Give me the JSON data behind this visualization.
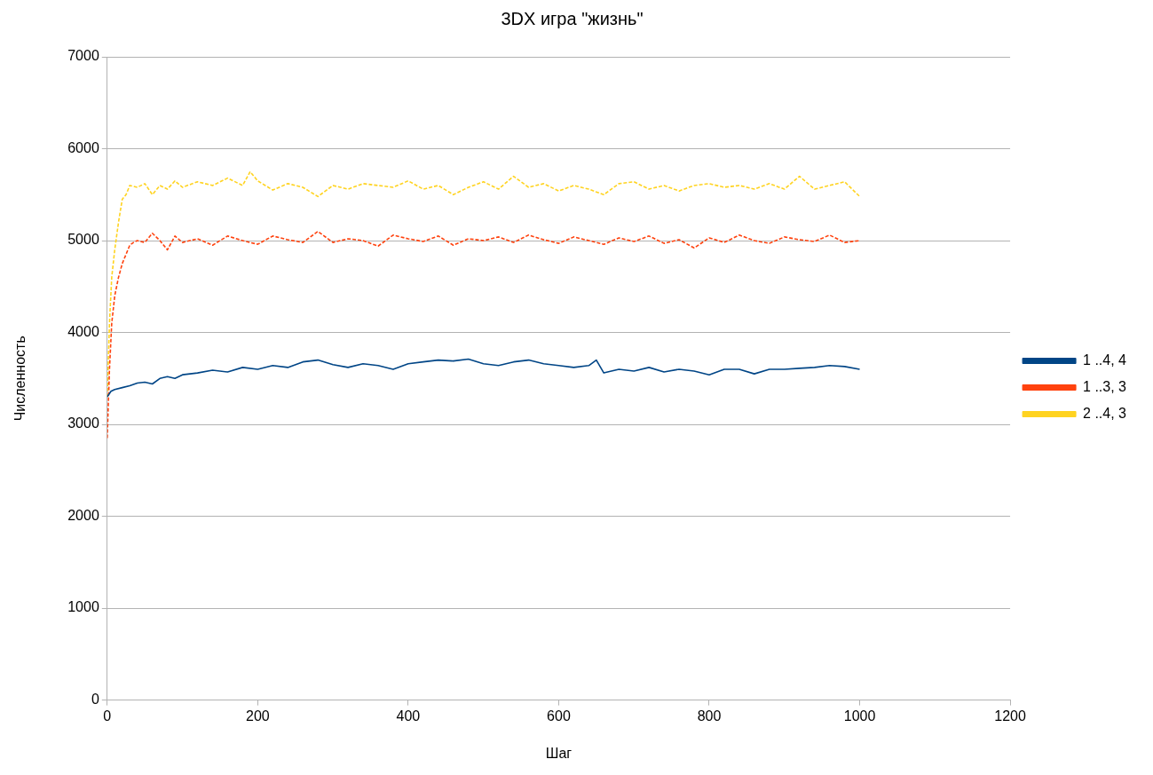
{
  "chart_data": {
    "type": "line",
    "title": "3DX игра \"жизнь\"",
    "xlabel": "Шаг",
    "ylabel": "Численность",
    "xlim": [
      0,
      1200
    ],
    "xticks": [
      0,
      200,
      400,
      600,
      800,
      1000,
      1200
    ],
    "ylim": [
      0,
      7000
    ],
    "yticks": [
      0,
      1000,
      2000,
      3000,
      4000,
      5000,
      6000,
      7000
    ],
    "grid": "y",
    "legend": "right",
    "marker": "none",
    "series": [
      {
        "name": "1 ..4, 4",
        "color": "#004586",
        "line_style": "solid",
        "x": [
          0,
          5,
          10,
          20,
          30,
          40,
          50,
          60,
          70,
          80,
          90,
          100,
          120,
          140,
          160,
          180,
          200,
          220,
          240,
          260,
          280,
          300,
          320,
          340,
          360,
          380,
          400,
          420,
          440,
          460,
          480,
          500,
          520,
          540,
          560,
          580,
          600,
          620,
          640,
          650,
          660,
          680,
          700,
          720,
          740,
          760,
          780,
          800,
          820,
          840,
          860,
          880,
          900,
          920,
          940,
          960,
          980,
          1000
        ],
        "values": [
          3300,
          3360,
          3380,
          3400,
          3420,
          3450,
          3460,
          3440,
          3500,
          3520,
          3500,
          3540,
          3560,
          3590,
          3570,
          3620,
          3600,
          3640,
          3620,
          3680,
          3700,
          3650,
          3620,
          3660,
          3640,
          3600,
          3660,
          3680,
          3700,
          3690,
          3710,
          3660,
          3640,
          3680,
          3700,
          3660,
          3640,
          3620,
          3640,
          3700,
          3560,
          3600,
          3580,
          3620,
          3570,
          3600,
          3580,
          3540,
          3600,
          3600,
          3550,
          3600,
          3600,
          3610,
          3620,
          3640,
          3630,
          3600
        ]
      },
      {
        "name": "1 ..3, 3",
        "color": "#ff420e",
        "line_style": "dashed",
        "x": [
          0,
          3,
          6,
          10,
          15,
          20,
          25,
          30,
          35,
          40,
          50,
          60,
          70,
          80,
          90,
          100,
          120,
          140,
          160,
          180,
          200,
          220,
          240,
          260,
          280,
          300,
          320,
          340,
          360,
          380,
          400,
          420,
          440,
          460,
          480,
          500,
          520,
          540,
          560,
          580,
          600,
          620,
          640,
          660,
          680,
          700,
          720,
          740,
          760,
          780,
          800,
          820,
          840,
          860,
          880,
          900,
          920,
          940,
          960,
          980,
          1000
        ],
        "values": [
          2850,
          3600,
          4100,
          4400,
          4600,
          4750,
          4850,
          4950,
          4980,
          5000,
          4980,
          5080,
          5000,
          4900,
          5050,
          4980,
          5020,
          4950,
          5050,
          5000,
          4960,
          5050,
          5010,
          4980,
          5100,
          4980,
          5020,
          5000,
          4940,
          5060,
          5020,
          4990,
          5050,
          4950,
          5020,
          5000,
          5040,
          4980,
          5060,
          5010,
          4970,
          5040,
          5000,
          4960,
          5030,
          4990,
          5050,
          4970,
          5010,
          4920,
          5030,
          4980,
          5060,
          5000,
          4970,
          5040,
          5010,
          4990,
          5060,
          4980,
          5000
        ]
      },
      {
        "name": "2 ..4, 3",
        "color": "#ffd320",
        "line_style": "dashed",
        "x": [
          0,
          3,
          6,
          10,
          15,
          20,
          25,
          30,
          40,
          50,
          60,
          70,
          80,
          90,
          100,
          120,
          140,
          160,
          180,
          190,
          200,
          220,
          240,
          260,
          280,
          300,
          320,
          340,
          360,
          380,
          400,
          420,
          440,
          460,
          480,
          500,
          520,
          540,
          560,
          580,
          600,
          620,
          640,
          660,
          680,
          700,
          720,
          740,
          760,
          780,
          800,
          820,
          840,
          860,
          880,
          900,
          920,
          940,
          960,
          980,
          1000
        ],
        "values": [
          3300,
          4100,
          4600,
          4900,
          5200,
          5450,
          5500,
          5600,
          5580,
          5620,
          5500,
          5600,
          5560,
          5650,
          5580,
          5640,
          5600,
          5680,
          5600,
          5750,
          5650,
          5550,
          5620,
          5580,
          5480,
          5600,
          5560,
          5620,
          5600,
          5580,
          5650,
          5560,
          5600,
          5500,
          5580,
          5640,
          5560,
          5700,
          5580,
          5620,
          5540,
          5600,
          5560,
          5500,
          5620,
          5640,
          5560,
          5600,
          5540,
          5600,
          5620,
          5580,
          5600,
          5560,
          5620,
          5560,
          5700,
          5560,
          5600,
          5640,
          5480
        ]
      }
    ]
  }
}
